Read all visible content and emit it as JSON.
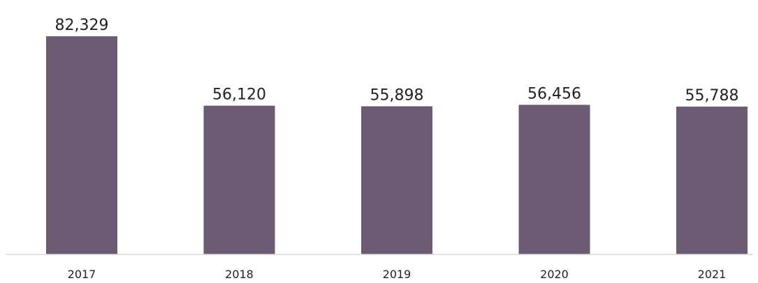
{
  "chart_data": {
    "type": "bar",
    "categories": [
      "2017",
      "2018",
      "2019",
      "2020",
      "2021"
    ],
    "values": [
      82329,
      56120,
      55898,
      56456,
      55788
    ],
    "value_labels": [
      "82,329",
      "56,120",
      "55,898",
      "56,456",
      "55,788"
    ],
    "title": "",
    "xlabel": "",
    "ylabel": "",
    "ylim": [
      0,
      82329
    ],
    "grid": false,
    "legend": "none",
    "colors": {
      "bar": "#6d5a73",
      "axis": "#d9d9d9",
      "text": "#222222"
    }
  }
}
